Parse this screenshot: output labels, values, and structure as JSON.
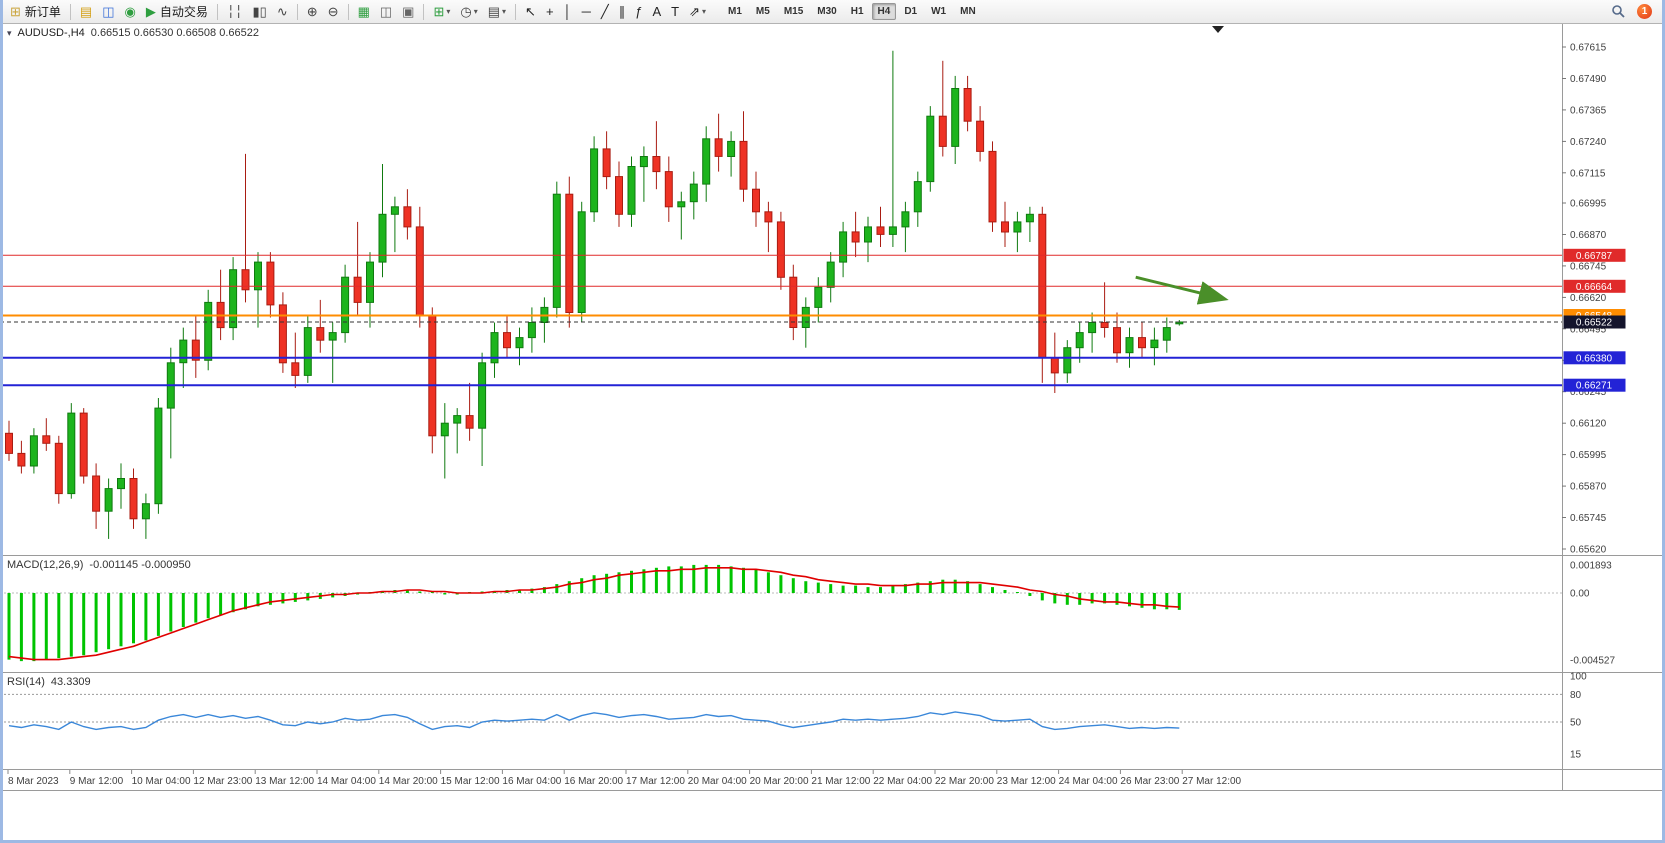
{
  "window": {
    "notification_count": "1"
  },
  "icons": {
    "one_click_toggle": "▾"
  },
  "toolbar": {
    "groups": [
      [
        {
          "name": "new-order-button",
          "glyph": "⊞",
          "color": "#caa53d",
          "label": "新订单"
        }
      ],
      [
        {
          "name": "charts-toolbar-button",
          "glyph": "▤",
          "color": "#d4a017"
        },
        {
          "name": "market-watch-button",
          "glyph": "◫",
          "color": "#3a6fd8"
        },
        {
          "name": "navigator-button",
          "glyph": "◉",
          "color": "#2e9e3f"
        },
        {
          "name": "autotrading-button",
          "glyph": "▶",
          "color": "#2e9e3f",
          "label": "自动交易"
        }
      ],
      [
        {
          "name": "bar-chart-button",
          "glyph": "╎╎",
          "color": "#444"
        },
        {
          "name": "candlestick-chart-button",
          "glyph": "▮▯",
          "color": "#444"
        },
        {
          "name": "line-chart-button",
          "glyph": "∿",
          "color": "#444"
        }
      ],
      [
        {
          "name": "zoom-in-button",
          "glyph": "⊕",
          "color": "#444"
        },
        {
          "name": "zoom-out-button",
          "glyph": "⊖",
          "color": "#444"
        }
      ],
      [
        {
          "name": "auto-arrange-button",
          "glyph": "▦",
          "color": "#2e9e3f"
        },
        {
          "name": "tile-windows-button",
          "glyph": "◫",
          "color": "#666"
        },
        {
          "name": "cascade-windows-button",
          "glyph": "▣",
          "color": "#666"
        }
      ],
      [
        {
          "name": "new-chart-button",
          "glyph": "⊞",
          "color": "#2e9e3f",
          "dropdown": true
        },
        {
          "name": "period-menu-button",
          "glyph": "◷",
          "color": "#444",
          "dropdown": true
        },
        {
          "name": "template-menu-button",
          "glyph": "▤",
          "color": "#444",
          "dropdown": true
        }
      ],
      [
        {
          "name": "cursor-tool-button",
          "glyph": "↖",
          "color": "#222"
        },
        {
          "name": "crosshair-tool-button",
          "glyph": "+",
          "color": "#222"
        },
        {
          "name": "vertical-line-tool-button",
          "glyph": "│",
          "color": "#222"
        },
        {
          "name": "horizontal-line-tool-button",
          "glyph": "─",
          "color": "#222"
        },
        {
          "name": "trendline-tool-button",
          "glyph": "╱",
          "color": "#222"
        },
        {
          "name": "channel-tool-button",
          "glyph": "∥",
          "color": "#222"
        },
        {
          "name": "fibonacci-tool-button",
          "glyph": "ƒ",
          "color": "#222"
        },
        {
          "name": "text-tool-button",
          "glyph": "A",
          "color": "#222"
        },
        {
          "name": "label-tool-button",
          "glyph": "T",
          "color": "#222"
        },
        {
          "name": "shapes-tool-button",
          "glyph": "⇗",
          "color": "#222",
          "dropdown": true
        }
      ]
    ],
    "timeframes": {
      "items": [
        "M1",
        "M5",
        "M15",
        "M30",
        "H1",
        "H4",
        "D1",
        "W1",
        "MN"
      ],
      "active": "H4"
    }
  },
  "chart": {
    "title_symbol": "AUDUSD-,H4",
    "title_ohlc": "0.66515 0.66530 0.66508 0.66522"
  },
  "chart_data": [
    {
      "type": "candlestick",
      "symbol": "AUDUSD",
      "timeframe": "H4",
      "open": 0.66515,
      "high": 0.6653,
      "low": 0.66508,
      "close": 0.66522,
      "y_axis": {
        "min": 0.6562,
        "max": 0.67615,
        "ticks": [
          "0.67615",
          "0.67490",
          "0.67365",
          "0.67240",
          "0.67115",
          "0.66995",
          "0.66870",
          "0.66745",
          "0.66620",
          "0.66495",
          "0.66370",
          "0.66245",
          "0.66120",
          "0.65995",
          "0.65870",
          "0.65745",
          "0.65620"
        ]
      },
      "x_labels": [
        "8 Mar 2023",
        "9 Mar 12:00",
        "10 Mar 04:00",
        "12 Mar 23:00",
        "13 Mar 12:00",
        "14 Mar 04:00",
        "14 Mar 20:00",
        "15 Mar 12:00",
        "16 Mar 04:00",
        "16 Mar 20:00",
        "17 Mar 12:00",
        "20 Mar 04:00",
        "20 Mar 20:00",
        "21 Mar 12:00",
        "22 Mar 04:00",
        "22 Mar 20:00",
        "23 Mar 12:00",
        "24 Mar 04:00",
        "26 Mar 23:00",
        "27 Mar 12:00"
      ],
      "levels": [
        {
          "price": 0.66787,
          "label": "0.66787",
          "color": "#e02a2a",
          "width": 1
        },
        {
          "price": 0.66664,
          "label": "0.66664",
          "color": "#e02a2a",
          "width": 1
        },
        {
          "price": 0.66548,
          "label": "0.66548",
          "color": "#ff8c00",
          "width": 2
        },
        {
          "price": 0.6638,
          "label": "0.66380",
          "color": "#2323d6",
          "width": 2
        },
        {
          "price": 0.66271,
          "label": "0.66271",
          "color": "#2323d6",
          "width": 2
        }
      ],
      "current_price": {
        "price": 0.66522,
        "label": "0.66522",
        "color": "#14142c"
      },
      "arrow_annotation": {
        "from_bar": 90.5,
        "from_price": 0.667,
        "to_bar": 97.5,
        "to_price": 0.66615,
        "color": "#4a8f29"
      },
      "colors": {
        "up_fill": "#1db41d",
        "up_stroke": "#0f7a0f",
        "down_fill": "#ee3224",
        "down_stroke": "#a91c12"
      },
      "ohlc": [
        [
          0.6608,
          0.6613,
          0.6597,
          0.66
        ],
        [
          0.66,
          0.6605,
          0.6592,
          0.6595
        ],
        [
          0.6595,
          0.661,
          0.6592,
          0.6607
        ],
        [
          0.6607,
          0.6614,
          0.6601,
          0.6604
        ],
        [
          0.6604,
          0.6607,
          0.658,
          0.6584
        ],
        [
          0.6584,
          0.662,
          0.6582,
          0.6616
        ],
        [
          0.6616,
          0.6618,
          0.6588,
          0.6591
        ],
        [
          0.6591,
          0.6596,
          0.657,
          0.6577
        ],
        [
          0.6577,
          0.659,
          0.6566,
          0.6586
        ],
        [
          0.6586,
          0.6596,
          0.6578,
          0.659
        ],
        [
          0.659,
          0.6594,
          0.657,
          0.6574
        ],
        [
          0.6574,
          0.6584,
          0.6566,
          0.658
        ],
        [
          0.658,
          0.6622,
          0.6576,
          0.6618
        ],
        [
          0.6618,
          0.6642,
          0.6598,
          0.6636
        ],
        [
          0.6636,
          0.665,
          0.6626,
          0.6645
        ],
        [
          0.6645,
          0.6655,
          0.663,
          0.6637
        ],
        [
          0.6637,
          0.6665,
          0.6633,
          0.666
        ],
        [
          0.666,
          0.6673,
          0.6645,
          0.665
        ],
        [
          0.665,
          0.6678,
          0.6645,
          0.6673
        ],
        [
          0.6673,
          0.6719,
          0.666,
          0.6665
        ],
        [
          0.6665,
          0.668,
          0.665,
          0.6676
        ],
        [
          0.6676,
          0.668,
          0.6654,
          0.6659
        ],
        [
          0.6659,
          0.6664,
          0.6632,
          0.6636
        ],
        [
          0.6636,
          0.6648,
          0.6626,
          0.6631
        ],
        [
          0.6631,
          0.6655,
          0.6628,
          0.665
        ],
        [
          0.665,
          0.6661,
          0.664,
          0.6645
        ],
        [
          0.6645,
          0.6652,
          0.6628,
          0.6648
        ],
        [
          0.6648,
          0.6675,
          0.6644,
          0.667
        ],
        [
          0.667,
          0.6692,
          0.6655,
          0.666
        ],
        [
          0.666,
          0.668,
          0.665,
          0.6676
        ],
        [
          0.6676,
          0.6715,
          0.667,
          0.6695
        ],
        [
          0.6695,
          0.6702,
          0.668,
          0.6698
        ],
        [
          0.6698,
          0.6705,
          0.6685,
          0.669
        ],
        [
          0.669,
          0.6698,
          0.665,
          0.6655
        ],
        [
          0.6655,
          0.6658,
          0.66,
          0.6607
        ],
        [
          0.6607,
          0.662,
          0.659,
          0.6612
        ],
        [
          0.6612,
          0.6618,
          0.66,
          0.6615
        ],
        [
          0.6615,
          0.6628,
          0.6605,
          0.661
        ],
        [
          0.661,
          0.664,
          0.6595,
          0.6636
        ],
        [
          0.6636,
          0.6652,
          0.663,
          0.6648
        ],
        [
          0.6648,
          0.6655,
          0.6638,
          0.6642
        ],
        [
          0.6642,
          0.665,
          0.6635,
          0.6646
        ],
        [
          0.6646,
          0.6658,
          0.664,
          0.6652
        ],
        [
          0.6652,
          0.6662,
          0.6644,
          0.6658
        ],
        [
          0.6658,
          0.6708,
          0.6654,
          0.6703
        ],
        [
          0.6703,
          0.671,
          0.665,
          0.6656
        ],
        [
          0.6656,
          0.67,
          0.6652,
          0.6696
        ],
        [
          0.6696,
          0.6726,
          0.6692,
          0.6721
        ],
        [
          0.6721,
          0.6728,
          0.6705,
          0.671
        ],
        [
          0.671,
          0.6716,
          0.669,
          0.6695
        ],
        [
          0.6695,
          0.6718,
          0.669,
          0.6714
        ],
        [
          0.6714,
          0.6722,
          0.67,
          0.6718
        ],
        [
          0.6718,
          0.6732,
          0.6705,
          0.6712
        ],
        [
          0.6712,
          0.6718,
          0.6692,
          0.6698
        ],
        [
          0.6698,
          0.6704,
          0.6685,
          0.67
        ],
        [
          0.67,
          0.6712,
          0.6693,
          0.6707
        ],
        [
          0.6707,
          0.673,
          0.67,
          0.6725
        ],
        [
          0.6725,
          0.6735,
          0.6712,
          0.6718
        ],
        [
          0.6718,
          0.6728,
          0.671,
          0.6724
        ],
        [
          0.6724,
          0.6736,
          0.67,
          0.6705
        ],
        [
          0.6705,
          0.6712,
          0.669,
          0.6696
        ],
        [
          0.6696,
          0.67,
          0.668,
          0.6692
        ],
        [
          0.6692,
          0.6696,
          0.6665,
          0.667
        ],
        [
          0.667,
          0.6675,
          0.6645,
          0.665
        ],
        [
          0.665,
          0.6662,
          0.6642,
          0.6658
        ],
        [
          0.6658,
          0.667,
          0.6652,
          0.6666
        ],
        [
          0.6666,
          0.668,
          0.666,
          0.6676
        ],
        [
          0.6676,
          0.6692,
          0.667,
          0.6688
        ],
        [
          0.6688,
          0.6696,
          0.6678,
          0.6684
        ],
        [
          0.6684,
          0.6694,
          0.6676,
          0.669
        ],
        [
          0.669,
          0.6698,
          0.6682,
          0.6687
        ],
        [
          0.6687,
          0.676,
          0.6682,
          0.669
        ],
        [
          0.669,
          0.67,
          0.668,
          0.6696
        ],
        [
          0.6696,
          0.6712,
          0.669,
          0.6708
        ],
        [
          0.6708,
          0.6738,
          0.6704,
          0.6734
        ],
        [
          0.6734,
          0.6756,
          0.6718,
          0.6722
        ],
        [
          0.6722,
          0.675,
          0.6715,
          0.6745
        ],
        [
          0.6745,
          0.675,
          0.6728,
          0.6732
        ],
        [
          0.6732,
          0.6738,
          0.6716,
          0.672
        ],
        [
          0.672,
          0.6724,
          0.6688,
          0.6692
        ],
        [
          0.6692,
          0.67,
          0.6682,
          0.6688
        ],
        [
          0.6688,
          0.6696,
          0.668,
          0.6692
        ],
        [
          0.6692,
          0.6698,
          0.6684,
          0.6695
        ],
        [
          0.6695,
          0.6698,
          0.6628,
          0.6638
        ],
        [
          0.6638,
          0.6648,
          0.6624,
          0.6632
        ],
        [
          0.6632,
          0.6645,
          0.6628,
          0.6642
        ],
        [
          0.6642,
          0.6652,
          0.6636,
          0.6648
        ],
        [
          0.6648,
          0.6656,
          0.664,
          0.6652
        ],
        [
          0.6652,
          0.6668,
          0.6646,
          0.665
        ],
        [
          0.665,
          0.6656,
          0.6636,
          0.664
        ],
        [
          0.664,
          0.665,
          0.6634,
          0.6646
        ],
        [
          0.6646,
          0.6652,
          0.6638,
          0.6642
        ],
        [
          0.6642,
          0.665,
          0.6635,
          0.6645
        ],
        [
          0.6645,
          0.6654,
          0.664,
          0.665
        ],
        [
          0.66515,
          0.6653,
          0.66508,
          0.66522
        ]
      ]
    },
    {
      "type": "bar",
      "name": "MACD(12,26,9)",
      "values_text": "-0.001145 -0.000950",
      "value_main": -0.001145,
      "value_signal": -0.00095,
      "axis_ticks": [
        {
          "v": 0.001893,
          "label": "0.001893"
        },
        {
          "v": 0,
          "label": "0.00"
        },
        {
          "v": -0.004527,
          "label": "-0.004527"
        }
      ],
      "colors": {
        "histogram": "#00c400",
        "signal": "#e00000"
      },
      "histogram": [
        -0.0045,
        -0.0046,
        -0.0046,
        -0.0045,
        -0.0044,
        -0.0043,
        -0.0042,
        -0.004,
        -0.0038,
        -0.0036,
        -0.0034,
        -0.0032,
        -0.0029,
        -0.0026,
        -0.0023,
        -0.002,
        -0.0017,
        -0.0015,
        -0.0013,
        -0.0011,
        -0.0009,
        -0.0008,
        -0.0007,
        -0.0006,
        -0.0005,
        -0.0004,
        -0.0003,
        -0.0002,
        -0.0001,
        0.0,
        0.0001,
        0.0002,
        0.0002,
        0.0001,
        0.0,
        -0.0001,
        -0.0001,
        0.0,
        0.0001,
        0.0001,
        0.0002,
        0.0002,
        0.0003,
        0.0004,
        0.0006,
        0.0008,
        0.001,
        0.0012,
        0.0013,
        0.0014,
        0.0015,
        0.0016,
        0.0017,
        0.0018,
        0.0018,
        0.0019,
        0.0019,
        0.0019,
        0.0018,
        0.0017,
        0.0016,
        0.0014,
        0.0012,
        0.001,
        0.0008,
        0.0007,
        0.0006,
        0.0005,
        0.0005,
        0.0004,
        0.0004,
        0.0005,
        0.0006,
        0.0007,
        0.0008,
        0.0009,
        0.0009,
        0.0008,
        0.0006,
        0.0004,
        0.0002,
        0.0,
        -0.0002,
        -0.0005,
        -0.0007,
        -0.0008,
        -0.0008,
        -0.0007,
        -0.0007,
        -0.0008,
        -0.0009,
        -0.001,
        -0.0011,
        -0.0011,
        -0.001145
      ],
      "signal": [
        -0.0043,
        -0.0044,
        -0.0045,
        -0.0045,
        -0.0045,
        -0.0044,
        -0.0043,
        -0.0042,
        -0.004,
        -0.0038,
        -0.0036,
        -0.0033,
        -0.003,
        -0.0027,
        -0.0024,
        -0.0021,
        -0.0018,
        -0.0015,
        -0.0012,
        -0.001,
        -0.0008,
        -0.0006,
        -0.0005,
        -0.0004,
        -0.0003,
        -0.0002,
        -0.0001,
        -0.0001,
        0.0,
        0.0,
        0.0001,
        0.0001,
        0.0002,
        0.0002,
        0.0001,
        0.0001,
        0.0,
        0.0,
        0.0,
        0.0001,
        0.0001,
        0.0002,
        0.0002,
        0.0003,
        0.0004,
        0.0006,
        0.0007,
        0.0009,
        0.001,
        0.0012,
        0.0013,
        0.0014,
        0.0015,
        0.0015,
        0.0016,
        0.0016,
        0.0017,
        0.0017,
        0.0017,
        0.0016,
        0.0016,
        0.0015,
        0.0014,
        0.0012,
        0.0011,
        0.0009,
        0.0008,
        0.0007,
        0.0006,
        0.0006,
        0.0005,
        0.0005,
        0.0005,
        0.0006,
        0.0006,
        0.0007,
        0.0007,
        0.0007,
        0.0007,
        0.0006,
        0.0005,
        0.0004,
        0.0002,
        0.0001,
        -0.0001,
        -0.0002,
        -0.0004,
        -0.0005,
        -0.0006,
        -0.0006,
        -0.0007,
        -0.0008,
        -0.0008,
        -0.0009,
        -0.00095
      ]
    },
    {
      "type": "line",
      "name": "RSI(14)",
      "values_text": "43.3309",
      "value": 43.3309,
      "range": [
        0,
        100
      ],
      "level_lines": [
        80,
        50
      ],
      "axis_ticks": [
        {
          "v": 100,
          "label": "100"
        },
        {
          "v": 80,
          "label": "80"
        },
        {
          "v": 50,
          "label": "50"
        },
        {
          "v": 15,
          "label": "15"
        }
      ],
      "color": "#3a87d9",
      "values": [
        46,
        44,
        47,
        45,
        42,
        50,
        45,
        42,
        44,
        45,
        42,
        44,
        52,
        56,
        58,
        55,
        58,
        55,
        57,
        54,
        56,
        52,
        47,
        46,
        50,
        48,
        50,
        54,
        52,
        53,
        57,
        58,
        55,
        48,
        42,
        45,
        46,
        44,
        50,
        52,
        51,
        52,
        53,
        52,
        58,
        52,
        57,
        60,
        58,
        55,
        57,
        58,
        56,
        53,
        54,
        55,
        58,
        56,
        57,
        53,
        52,
        51,
        47,
        44,
        46,
        48,
        50,
        53,
        52,
        53,
        52,
        53,
        54,
        56,
        60,
        58,
        61,
        59,
        57,
        52,
        51,
        52,
        53,
        45,
        42,
        43,
        45,
        46,
        47,
        45,
        43,
        44,
        43,
        44,
        43.33
      ]
    }
  ]
}
